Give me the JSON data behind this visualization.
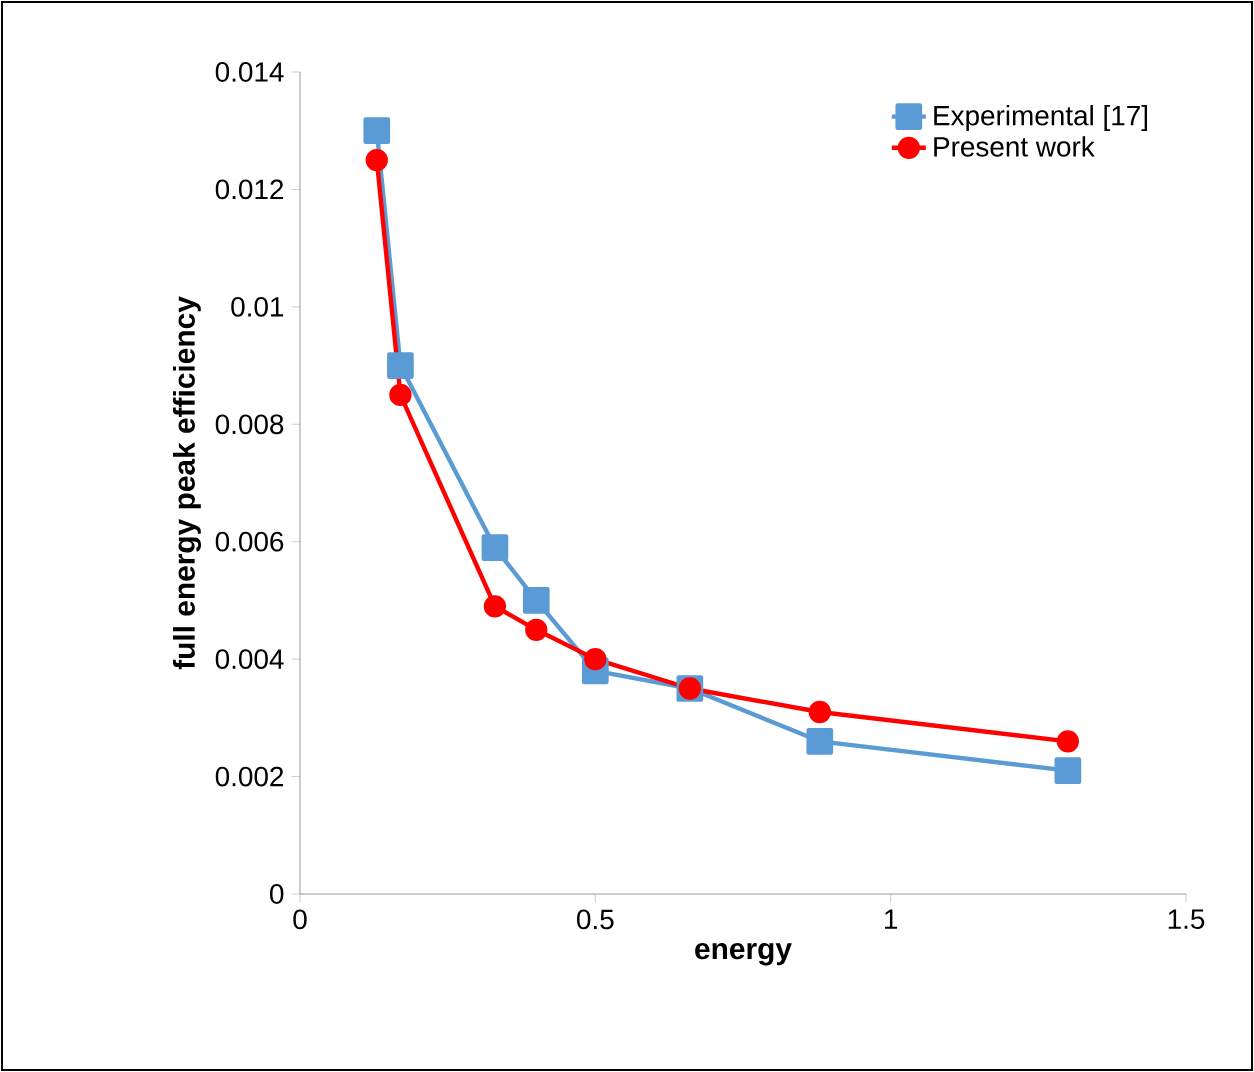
{
  "chart_data": {
    "type": "line",
    "xlabel": "energy",
    "ylabel": "full energy peak efficiency",
    "x": [
      0.13,
      0.17,
      0.33,
      0.4,
      0.5,
      0.66,
      0.88,
      1.3
    ],
    "series": [
      {
        "name": "Experimental [17]",
        "color": "#5b9bd5",
        "marker": "square",
        "values": [
          0.013,
          0.009,
          0.0059,
          0.005,
          0.0038,
          0.0035,
          0.0026,
          0.0021
        ]
      },
      {
        "name": "Present work",
        "color": "#ff0000",
        "marker": "circle",
        "values": [
          0.0125,
          0.0085,
          0.0049,
          0.0045,
          0.004,
          0.0035,
          0.0031,
          0.0026
        ]
      }
    ],
    "xlim": [
      0,
      1.5
    ],
    "xticks": [
      0,
      0.5,
      1,
      1.5
    ],
    "ylim": [
      0,
      0.014
    ],
    "yticks": [
      0,
      0.002,
      0.004,
      0.006,
      0.008,
      0.01,
      0.012,
      0.014
    ],
    "legend": "top right",
    "grid": false,
    "line_style": "solid"
  }
}
